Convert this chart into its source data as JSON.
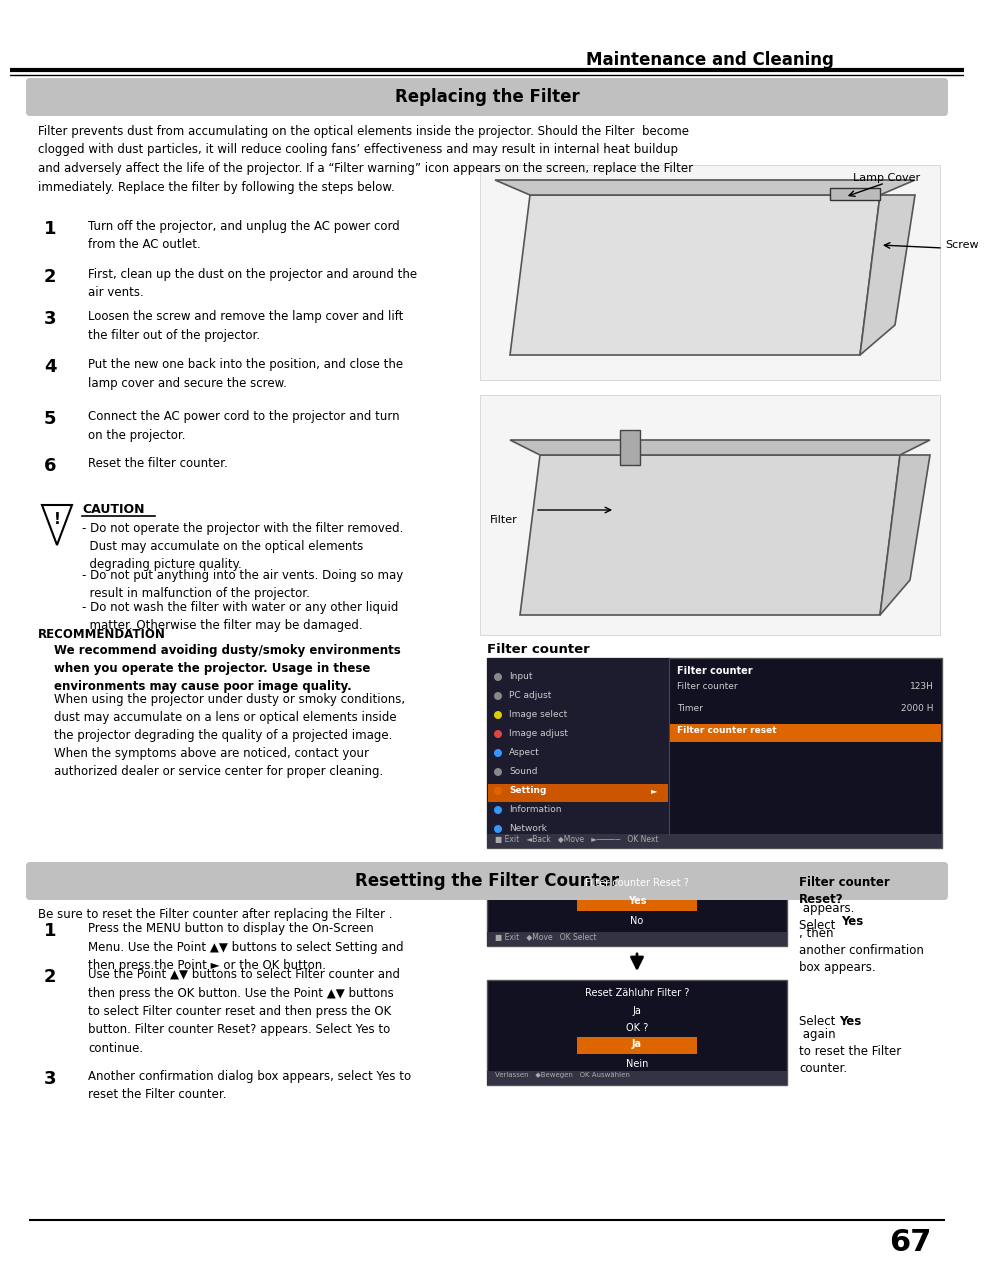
{
  "page_title": "Maintenance and Cleaning",
  "section1_title": "Replacing the Filter",
  "section2_title": "Resetting the Filter Counter",
  "intro_text": "Filter prevents dust from accumulating on the optical elements inside the projector. Should the Filter  become\nclogged with dust particles, it will reduce cooling fans’ effectiveness and may result in internal heat buildup\nand adversely affect the life of the projector. If a “Filter warning” icon appears on the screen, replace the Filter\nimmediately. Replace the filter by following the steps below.",
  "steps1": [
    {
      "num": "1",
      "text": "Turn off the projector, and unplug the AC power cord\nfrom the AC outlet."
    },
    {
      "num": "2",
      "text": "First, clean up the dust on the projector and around the\nair vents."
    },
    {
      "num": "3",
      "text": "Loosen the screw and remove the lamp cover and lift\nthe filter out of the projector."
    },
    {
      "num": "4",
      "text": "Put the new one back into the position, and close the\nlamp cover and secure the screw."
    },
    {
      "num": "5",
      "text": "Connect the AC power cord to the projector and turn\non the projector."
    },
    {
      "num": "6",
      "text": "Reset the filter counter."
    }
  ],
  "caution_title": "CAUTION",
  "caution_items": [
    "- Do not operate the projector with the filter removed.\n  Dust may accumulate on the optical elements\n  degrading picture quality.",
    "- Do not put anything into the air vents. Doing so may\n  result in malfunction of the projector.",
    "- Do not wash the filter with water or any other liquid\n  matter. Otherwise the filter may be damaged."
  ],
  "recommendation_title": "RECOMMENDATION",
  "recommendation_bold": "We recommend avoiding dusty/smoky environments\nwhen you operate the projector. Usage in these\nenvironments may cause poor image quality.",
  "recommendation_text": "When using the projector under dusty or smoky conditions,\ndust may accumulate on a lens or optical elements inside\nthe projector degrading the quality of a projected image.\nWhen the symptoms above are noticed, contact your\nauthorized dealer or service center for proper cleaning.",
  "section2_intro": "Be sure to reset the Filter counter after replacing the Filter .",
  "steps2": [
    {
      "num": "1",
      "text": "Press the MENU button to display the On-Screen\nMenu. Use the Point ▲▼ buttons to select Setting and\nthen press the Point ► or the OK button."
    },
    {
      "num": "2",
      "text": "Use the Point ▲▼ buttons to select Filter counter and\nthen press the OK button. Use the Point ▲▼ buttons\nto select Filter counter reset and then press the OK\nbutton. Filter counter Reset? appears. Select Yes to\ncontinue."
    },
    {
      "num": "3",
      "text": "Another confirmation dialog box appears, select Yes to\nreset the Filter counter."
    }
  ],
  "steps2_bold_parts": [
    [],
    [
      "Filter counter",
      "Filter counter reset",
      "Filter counter Reset?",
      "Yes"
    ],
    [
      "Yes"
    ]
  ],
  "filter_counter_label": "Filter counter",
  "reset_caption1_bold": "Filter counter\nReset?",
  "reset_caption1_normal": " appears.\nSelect ",
  "reset_caption1_yes": "Yes",
  "reset_caption1_rest": ", then\nanother confirmation\nbox appears.",
  "reset_caption2_pre": "Select ",
  "reset_caption2_yes": "Yes",
  "reset_caption2_post": " again\nto reset the Filter\ncounter.",
  "page_number": "67",
  "bg_color": "#ffffff",
  "section_bg_color": "#c0c0c0",
  "menu_left_items": [
    "Input",
    "PC adjust",
    "Image select",
    "Image adjust",
    "Aspect",
    "Sound",
    "Setting",
    "Information",
    "Network"
  ],
  "menu_right_title": "Filter counter",
  "menu_right_rows": [
    {
      "label": "Filter counter",
      "value": "123H",
      "highlight": false
    },
    {
      "label": "Timer",
      "value": "2000 H",
      "highlight": false
    },
    {
      "label": "Filter counter reset",
      "value": "",
      "highlight": true
    }
  ]
}
